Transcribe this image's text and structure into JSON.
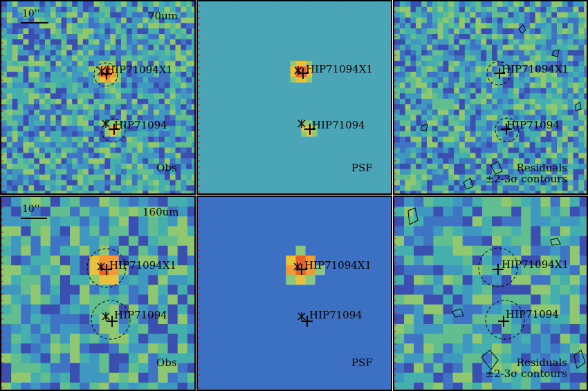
{
  "rows": [
    {
      "band": "70um",
      "scale_label": "10''",
      "panels": [
        {
          "kind": "obs",
          "label": "Obs"
        },
        {
          "kind": "psf",
          "label": "PSF",
          "axis_ticks": [
            "40",
            "30",
            "20",
            "10"
          ]
        },
        {
          "kind": "res",
          "label_line1": "Residuals",
          "label_line2": "±2-3σ contours"
        }
      ],
      "sources": [
        "HIP71094X1",
        "HIP71094"
      ]
    },
    {
      "band": "160um",
      "scale_label": "10''",
      "panels": [
        {
          "kind": "obs",
          "label": "Obs"
        },
        {
          "kind": "psf",
          "label": "PSF",
          "axis_ticks": [
            "20",
            "15",
            "10",
            "5"
          ]
        },
        {
          "kind": "res",
          "label_line1": "Residuals",
          "label_line2": "±2-3σ contours"
        }
      ],
      "sources": [
        "HIP71094X1",
        "HIP71094"
      ]
    }
  ],
  "colors": {
    "background": "#3fa0b0",
    "psf_background_70": "#4aa7b8",
    "psf_background_160": "#3c74c4",
    "hot": "#e8602a",
    "warm": "#f2b23a",
    "frame": "#000000",
    "ticks": "#d01010"
  }
}
